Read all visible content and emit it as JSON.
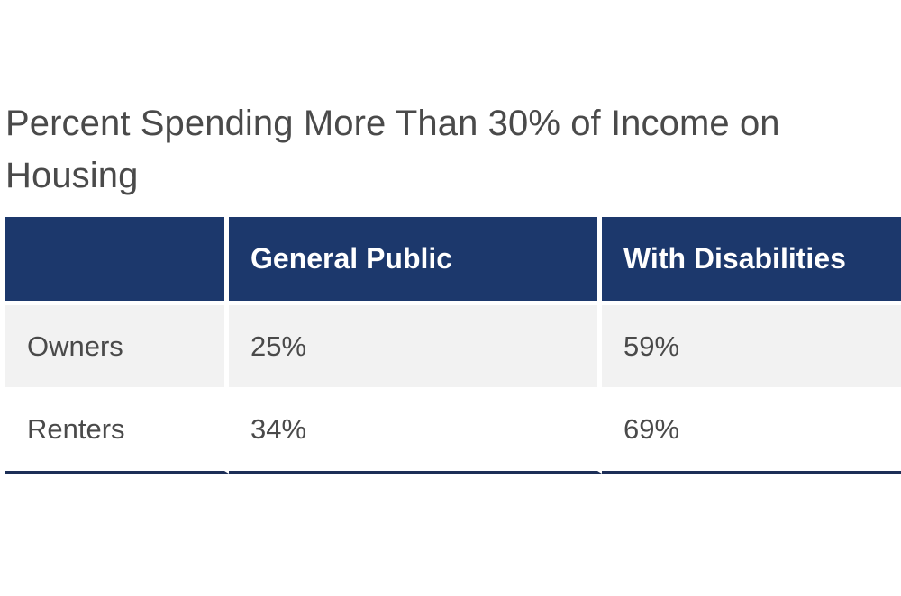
{
  "chart_data": {
    "type": "table",
    "title": "Percent Spending More Than 30% of Income on Housing",
    "columns": [
      "",
      "General Public",
      "With Disabilities"
    ],
    "rows": [
      {
        "label": "Owners",
        "values": [
          "25%",
          "59%"
        ]
      },
      {
        "label": "Renters",
        "values": [
          "34%",
          "69%"
        ]
      }
    ],
    "colors": {
      "header_bg": "#1c386c",
      "header_text": "#ffffff",
      "stripe_bg": "#f2f2f2",
      "bottom_rule": "#1c2e57"
    }
  }
}
